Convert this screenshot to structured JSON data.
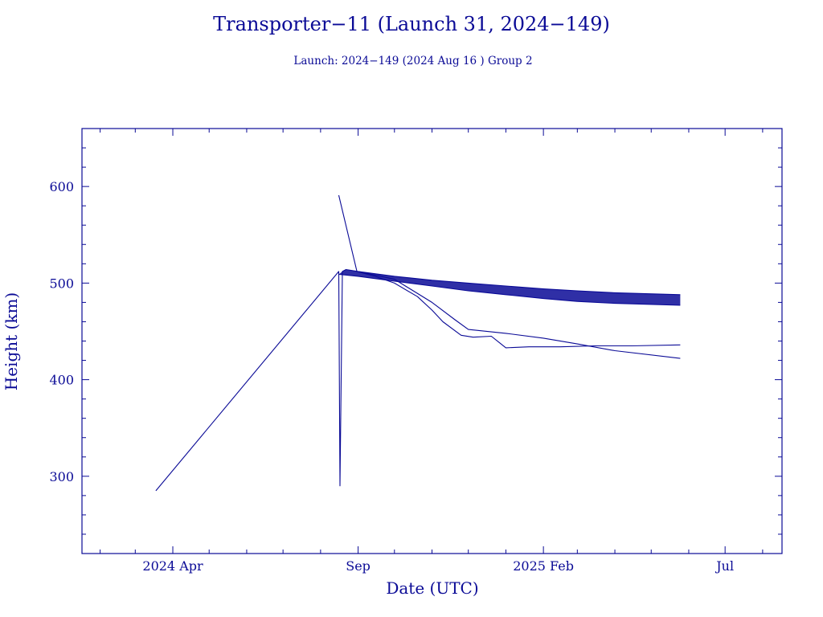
{
  "chart_data": {
    "type": "line",
    "title": "Transporter−11 (Launch 31, 2024−149)",
    "subtitle": "Launch: 2024−149  (2024 Aug 16 )  Group 2",
    "xlabel": "Date (UTC)",
    "ylabel": "Height (km)",
    "xlim": [
      "2024-01-17",
      "2025-08-17"
    ],
    "ylim": [
      220,
      660
    ],
    "x_ticks": [
      {
        "date": "2024-04-01",
        "label": "2024 Apr"
      },
      {
        "date": "2024-09-01",
        "label": "Sep"
      },
      {
        "date": "2025-02-01",
        "label": "2025 Feb"
      },
      {
        "date": "2025-07-01",
        "label": "Jul"
      }
    ],
    "y_ticks": [
      300,
      400,
      500,
      600
    ],
    "grid": false,
    "legend": "none",
    "color": "#0a0a96",
    "series": [
      {
        "points": [
          [
            "2024-03-18",
            285
          ],
          [
            "2024-08-16",
            512
          ],
          [
            "2024-08-17",
            290
          ],
          [
            "2024-08-19",
            512
          ],
          [
            "2024-08-22",
            514
          ],
          [
            "2024-09-01",
            512
          ],
          [
            "2024-10-01",
            507
          ],
          [
            "2024-11-01",
            503
          ],
          [
            "2024-12-01",
            500
          ],
          [
            "2025-01-01",
            497
          ],
          [
            "2025-02-01",
            494
          ],
          [
            "2025-03-01",
            492
          ],
          [
            "2025-04-01",
            490
          ],
          [
            "2025-05-25",
            488
          ]
        ]
      },
      {
        "points": [
          [
            "2024-08-16",
            509
          ],
          [
            "2024-09-01",
            507
          ],
          [
            "2024-10-01",
            502
          ],
          [
            "2024-11-01",
            497
          ],
          [
            "2024-12-01",
            492
          ],
          [
            "2025-01-01",
            488
          ],
          [
            "2025-02-01",
            484
          ],
          [
            "2025-03-01",
            481
          ],
          [
            "2025-04-01",
            479
          ],
          [
            "2025-05-25",
            477
          ]
        ]
      },
      {
        "points": [
          [
            "2024-08-16",
            591
          ],
          [
            "2024-08-31",
            512
          ],
          [
            "2024-09-15",
            507
          ],
          [
            "2024-10-01",
            500
          ],
          [
            "2024-10-20",
            486
          ],
          [
            "2024-11-01",
            472
          ],
          [
            "2024-11-10",
            460
          ],
          [
            "2024-11-25",
            446
          ],
          [
            "2024-12-05",
            444
          ],
          [
            "2024-12-20",
            445
          ],
          [
            "2024-12-27",
            438
          ],
          [
            "2025-01-01",
            433
          ],
          [
            "2025-01-20",
            434
          ],
          [
            "2025-02-15",
            434
          ],
          [
            "2025-03-15",
            435
          ],
          [
            "2025-04-15",
            435
          ],
          [
            "2025-05-25",
            436
          ]
        ]
      },
      {
        "points": [
          [
            "2024-09-01",
            512
          ],
          [
            "2024-10-01",
            504
          ],
          [
            "2024-11-01",
            480
          ],
          [
            "2024-11-20",
            462
          ],
          [
            "2024-12-01",
            452
          ],
          [
            "2025-01-01",
            448
          ],
          [
            "2025-02-01",
            443
          ],
          [
            "2025-03-01",
            437
          ],
          [
            "2025-04-01",
            430
          ],
          [
            "2025-05-25",
            422
          ]
        ]
      }
    ]
  }
}
